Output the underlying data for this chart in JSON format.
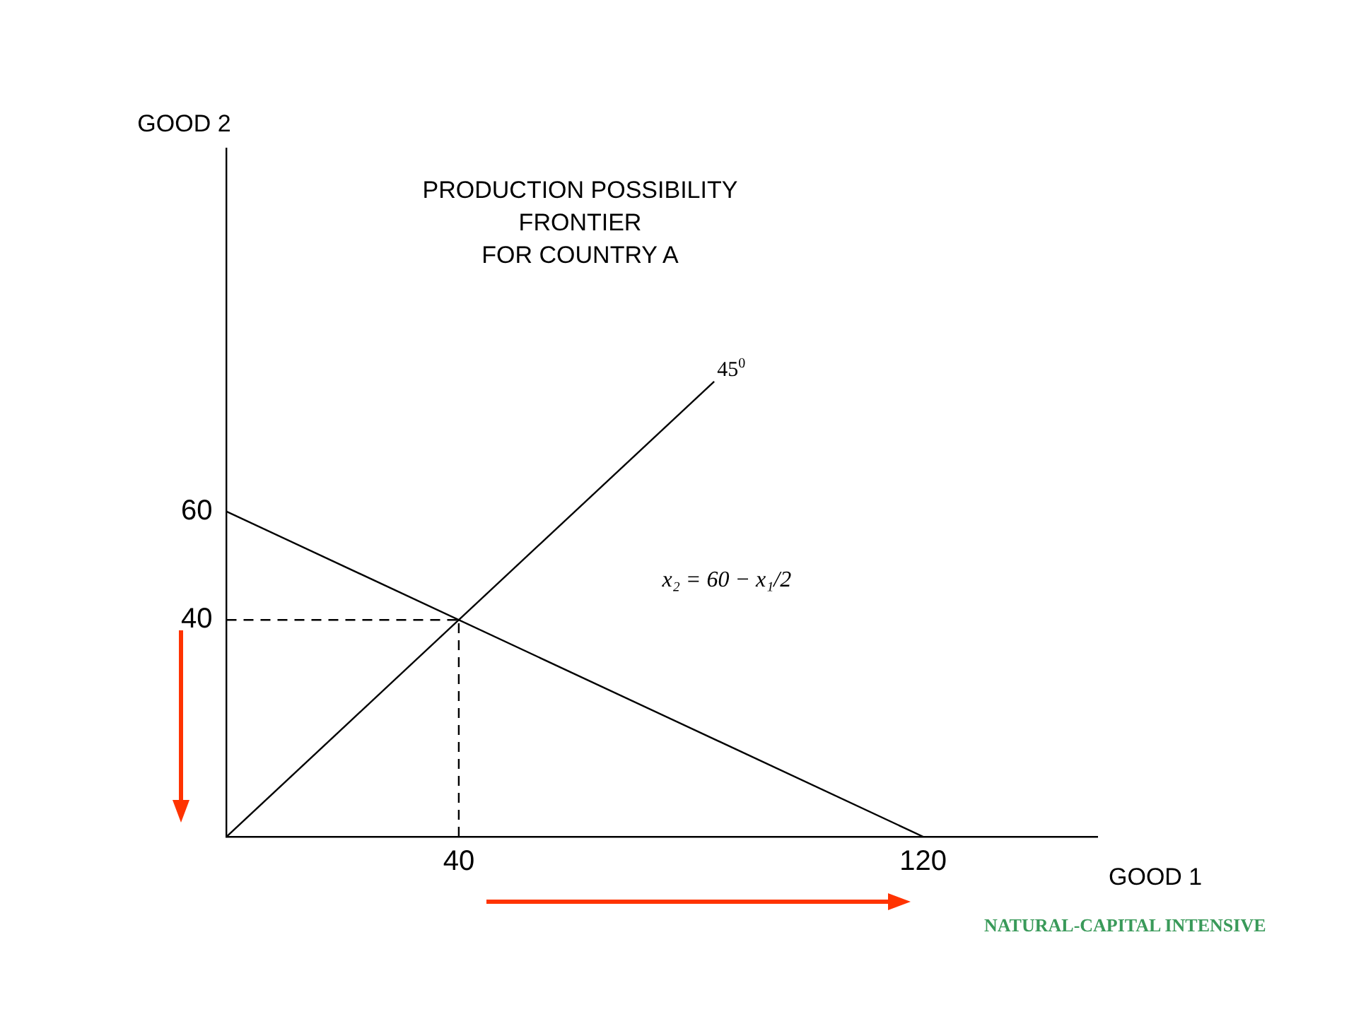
{
  "chart_data": {
    "type": "line",
    "title": "PRODUCTION POSSIBILITY\nFRONTIER\nFOR COUNTRY A",
    "xlabel": "GOOD 1",
    "ylabel": "GOOD 2",
    "xlim": [
      0,
      150
    ],
    "ylim": [
      0,
      127
    ],
    "xticks": [
      40,
      120
    ],
    "yticks": [
      40,
      60
    ],
    "grid": false,
    "legend": false,
    "marker": "none",
    "series": [
      {
        "color": "#000000",
        "x": [
          0,
          120
        ],
        "values": [
          60,
          0
        ]
      },
      {
        "color": "#000000",
        "x": [
          0,
          84
        ],
        "values": [
          0,
          84
        ]
      },
      {
        "color": "#000000",
        "x": [
          40,
          40
        ],
        "values": [
          0,
          40
        ],
        "line_style": "dashed"
      },
      {
        "color": "#000000",
        "x": [
          0,
          40
        ],
        "values": [
          40,
          40
        ],
        "line_style": "dashed"
      }
    ],
    "annotations": [
      {
        "text": "45$^{0}$",
        "x": 84,
        "y": 84
      },
      "x₂ = 60 − x₁/2",
      "NATURAL-CAPITAL INTENSIVE"
    ]
  }
}
